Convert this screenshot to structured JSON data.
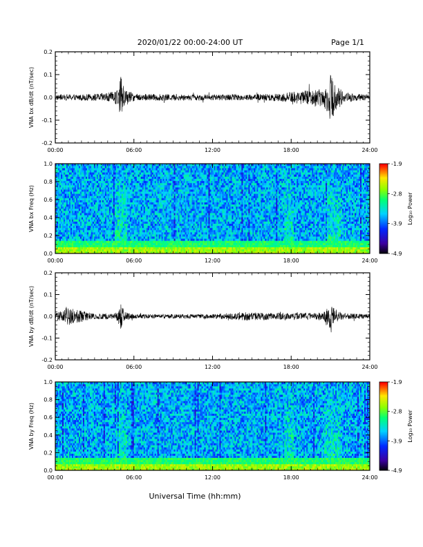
{
  "header": {
    "title": "2020/01/22  00:00-24:00 UT",
    "page": "Page 1/1"
  },
  "xaxis": {
    "label": "Universal Time (hh:mm)",
    "ticks": [
      "00:00",
      "06:00",
      "12:00",
      "18:00",
      "24:00"
    ],
    "range_hours": [
      0,
      24
    ]
  },
  "colorbar": {
    "label": "Log₁₀ Power",
    "ticks": [
      "-1.9",
      "-2.8",
      "-3.9",
      "-4.9"
    ],
    "range": [
      -4.9,
      -1.9
    ],
    "colormap": "rainbow"
  },
  "colors": {
    "trace": "#000000",
    "axes": "#000000",
    "background": "#ffffff"
  },
  "chart_data": [
    {
      "type": "line",
      "ylabel": "VNA bx dB/dt (nT/sec)",
      "ylim": [
        -0.2,
        0.2
      ],
      "yticks": [
        "0.2",
        "0.1",
        "0.0",
        "-0.1",
        "-0.2"
      ],
      "series": [
        {
          "x": [
            0,
            3,
            4.5,
            4.8,
            5.0,
            5.2,
            6,
            9,
            12,
            15,
            17.5,
            18,
            20.5,
            21.0,
            21.3,
            21.6,
            22,
            23,
            24
          ],
          "amplitude": [
            0.012,
            0.015,
            0.025,
            0.045,
            0.1,
            0.04,
            0.016,
            0.014,
            0.013,
            0.013,
            0.02,
            0.025,
            0.04,
            0.1,
            0.08,
            0.05,
            0.025,
            0.015,
            0.013
          ]
        }
      ]
    },
    {
      "type": "heatmap",
      "ylabel": "VNA bx Freq (Hz)",
      "ylim": [
        0.0,
        1.0
      ],
      "yticks": [
        "1.0",
        "0.8",
        "0.6",
        "0.4",
        "0.2",
        "0.0"
      ],
      "x_range": [
        0,
        24
      ],
      "enhanced_intervals": [
        [
          4.5,
          5.5
        ],
        [
          17.5,
          18.2
        ],
        [
          20.5,
          21.8
        ]
      ]
    },
    {
      "type": "line",
      "ylabel": "VNA by dB/dt (nT/sec)",
      "ylim": [
        -0.2,
        0.2
      ],
      "yticks": [
        "0.2",
        "0.1",
        "0.0",
        "-0.1",
        "-0.2"
      ],
      "series": [
        {
          "x": [
            0,
            1,
            3,
            4.5,
            4.8,
            5.0,
            5.3,
            6,
            9,
            12,
            14,
            17.5,
            18,
            20.5,
            21.0,
            21.3,
            21.6,
            22,
            23,
            24
          ],
          "amplitude": [
            0.012,
            0.04,
            0.012,
            0.015,
            0.03,
            0.06,
            0.02,
            0.01,
            0.01,
            0.01,
            0.02,
            0.015,
            0.015,
            0.02,
            0.06,
            0.04,
            0.025,
            0.015,
            0.012,
            0.01
          ]
        }
      ]
    },
    {
      "type": "heatmap",
      "ylabel": "VNA by Freq (Hz)",
      "ylim": [
        0.0,
        1.0
      ],
      "yticks": [
        "1.0",
        "0.8",
        "0.6",
        "0.4",
        "0.2",
        "0.0"
      ],
      "x_range": [
        0,
        24
      ],
      "enhanced_intervals": [
        [
          4.5,
          5.5
        ],
        [
          17.5,
          18.2
        ],
        [
          20.5,
          21.8
        ]
      ]
    }
  ]
}
